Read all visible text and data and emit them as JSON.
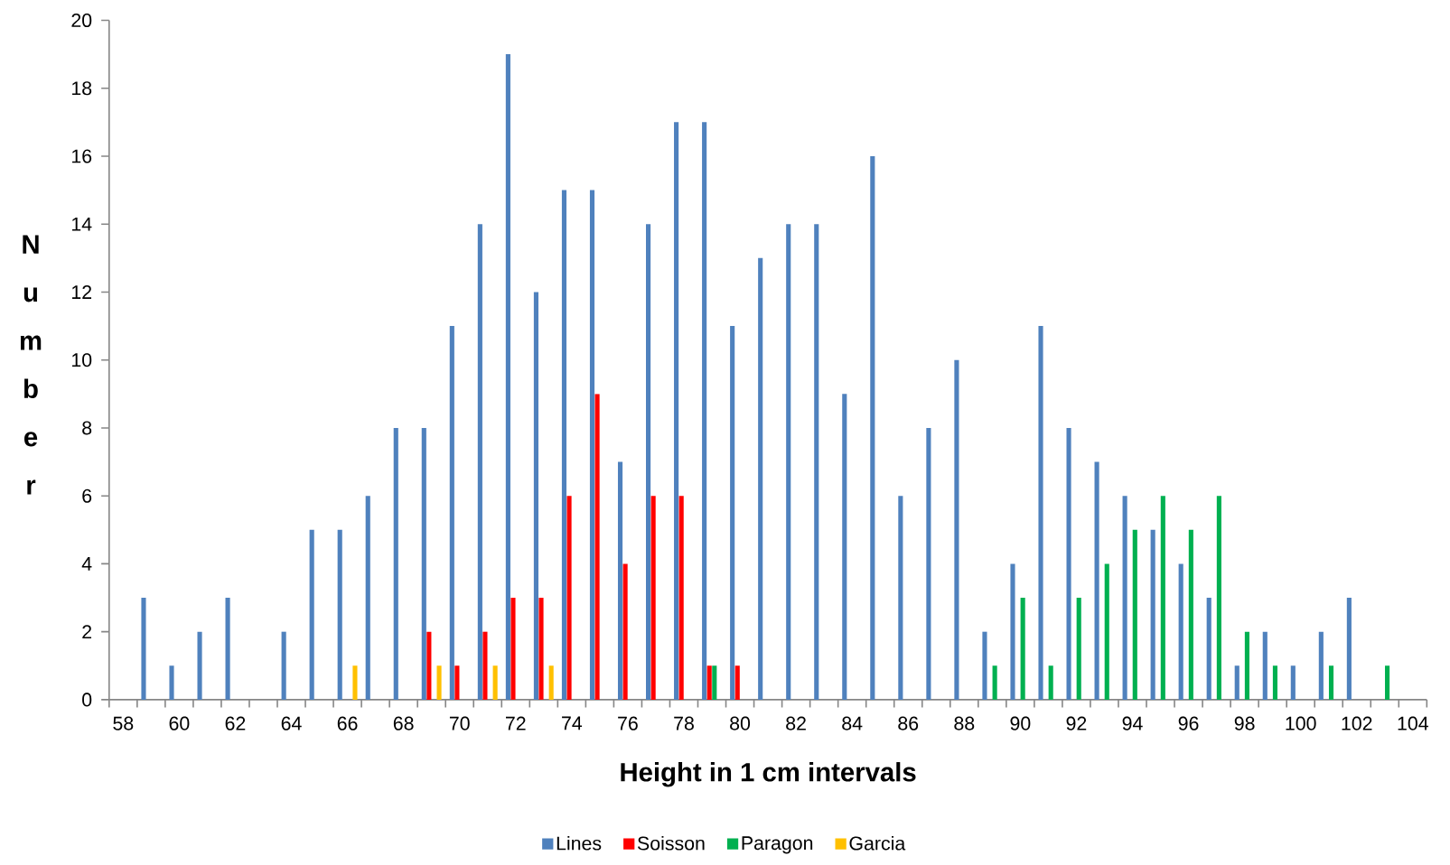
{
  "chart_data": {
    "type": "bar",
    "xlabel": "Height in 1 cm intervals",
    "ylabel": "Number",
    "categories": [
      "58",
      null,
      "60",
      null,
      "62",
      null,
      "64",
      null,
      "66",
      null,
      "68",
      null,
      "70",
      null,
      "72",
      null,
      "74",
      null,
      "76",
      null,
      "78",
      null,
      "80",
      null,
      "82",
      null,
      "84",
      null,
      "86",
      null,
      "88",
      null,
      "90",
      null,
      "92",
      null,
      "94",
      null,
      "96",
      null,
      "98",
      null,
      "100",
      null,
      "102",
      null,
      "104"
    ],
    "series": [
      {
        "name": "Lines",
        "color": "#4f81bd",
        "values": [
          null,
          3,
          1,
          2,
          3,
          null,
          2,
          5,
          5,
          6,
          8,
          8,
          11,
          14,
          19,
          12,
          15,
          15,
          7,
          14,
          17,
          17,
          11,
          13,
          14,
          14,
          9,
          16,
          6,
          8,
          10,
          2,
          4,
          11,
          8,
          7,
          6,
          5,
          4,
          3,
          1,
          2,
          1,
          2,
          3,
          null,
          null
        ]
      },
      {
        "name": "Soisson",
        "color": "#ff0000",
        "values": [
          null,
          null,
          null,
          null,
          null,
          null,
          null,
          null,
          null,
          null,
          null,
          2,
          1,
          2,
          3,
          3,
          6,
          9,
          4,
          6,
          6,
          1,
          1,
          null,
          null,
          null,
          null,
          null,
          null,
          null,
          null,
          null,
          null,
          null,
          null,
          null,
          null,
          null,
          null,
          null,
          null,
          null,
          null,
          null,
          null,
          null,
          null
        ]
      },
      {
        "name": "Paragon",
        "color": "#00b050",
        "values": [
          null,
          null,
          null,
          null,
          null,
          null,
          null,
          null,
          null,
          null,
          null,
          null,
          null,
          null,
          null,
          null,
          null,
          null,
          null,
          null,
          null,
          1,
          null,
          null,
          null,
          null,
          null,
          null,
          null,
          null,
          null,
          1,
          3,
          1,
          3,
          4,
          5,
          6,
          5,
          6,
          2,
          1,
          null,
          1,
          null,
          1,
          null
        ]
      },
      {
        "name": "Garcia",
        "color": "#ffc000",
        "values": [
          null,
          null,
          null,
          null,
          null,
          null,
          null,
          null,
          1,
          null,
          null,
          1,
          null,
          1,
          null,
          1,
          null,
          null,
          null,
          null,
          null,
          null,
          null,
          null,
          null,
          null,
          null,
          null,
          null,
          null,
          null,
          null,
          null,
          null,
          null,
          null,
          null,
          null,
          null,
          null,
          null,
          null,
          null,
          null,
          null,
          null,
          null
        ]
      }
    ],
    "ylim": [
      0,
      20
    ],
    "yticks": [
      0,
      2,
      4,
      6,
      8,
      10,
      12,
      14,
      16,
      18,
      20
    ],
    "legend": "bottom"
  }
}
